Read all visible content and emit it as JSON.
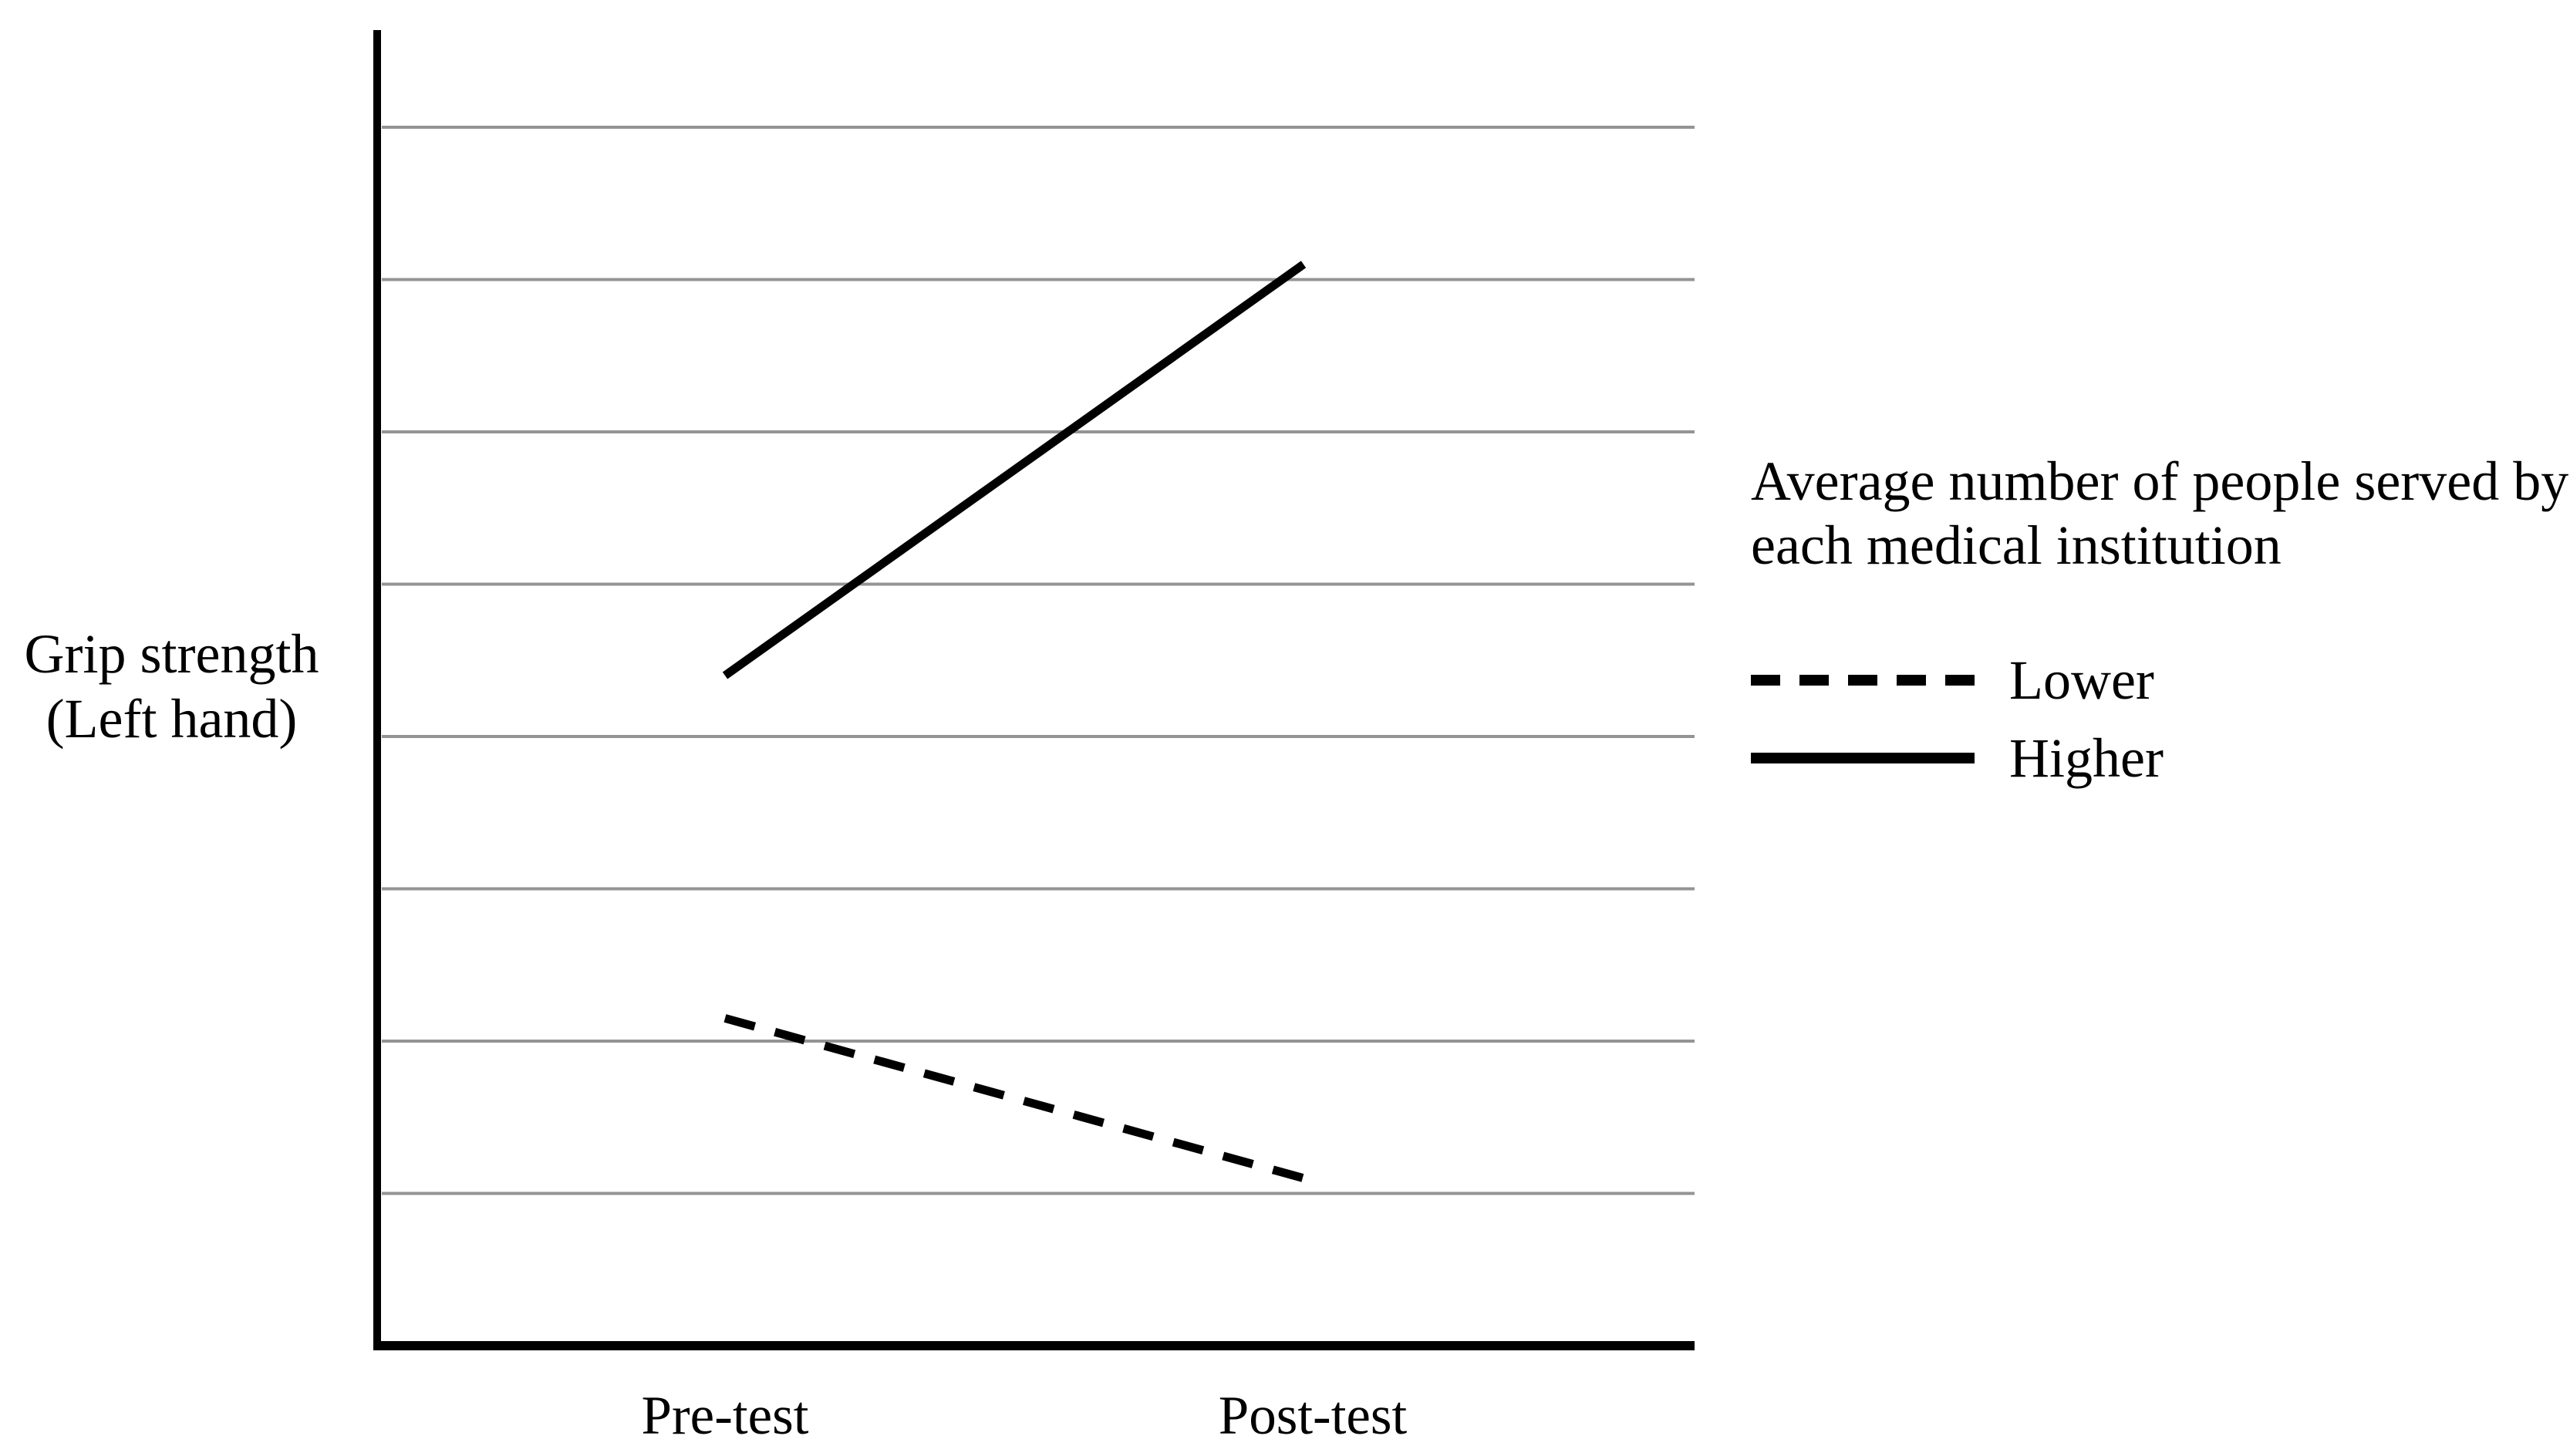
{
  "figure": {
    "background": "#ffffff"
  },
  "colors": {
    "line": "#000000",
    "gridline": "#949494",
    "text": "#000000"
  },
  "y_axis": {
    "label_line1": "Grip strength",
    "label_line2": "(Left hand)"
  },
  "x_axis": {
    "ticks": [
      "Pre-test",
      "Post-test"
    ]
  },
  "legend": {
    "title_line1": "Average number of people served by",
    "title_line2": "each medical institution",
    "items": [
      {
        "label": "Lower",
        "style": "dashed"
      },
      {
        "label": "Higher",
        "style": "solid"
      }
    ]
  },
  "chart_data": {
    "type": "line",
    "categories": [
      "Pre-test",
      "Post-test"
    ],
    "series": [
      {
        "name": "Lower",
        "style": "dashed",
        "values": [
          2.15,
          1.1
        ]
      },
      {
        "name": "Higher",
        "style": "solid",
        "values": [
          4.4,
          7.1
        ]
      }
    ],
    "title": "",
    "xlabel": "",
    "ylabel": "Grip strength (Left hand)",
    "ylim": [
      0,
      9
    ],
    "y_gridlines": [
      1,
      2,
      3,
      4,
      5,
      6,
      7,
      8
    ],
    "y_tick_labels": [],
    "grid": "horizontal-only",
    "legend_title": "Average number of people served by each medical institution",
    "legend_position": "right"
  }
}
